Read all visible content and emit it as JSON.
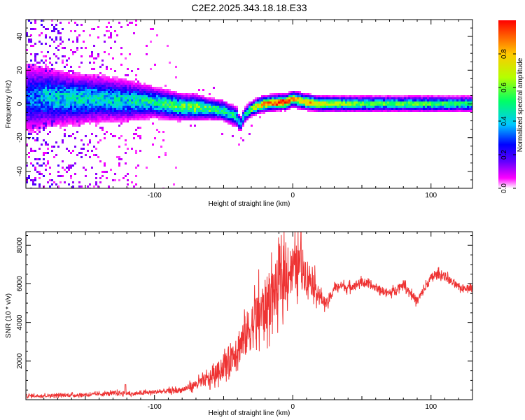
{
  "figure_title": "C2E2.2025.343.18.18.E33",
  "chart_data": [
    {
      "type": "heatmap",
      "title": "C2E2.2025.343.18.18.E33",
      "xlabel": "Height of straight line (km)",
      "ylabel": "Frequency (Hz)",
      "xlim": [
        -193,
        130
      ],
      "ylim": [
        -50,
        50
      ],
      "x_ticks": [
        -100,
        0,
        100
      ],
      "x_tick_labels": [
        "-100",
        "0",
        "100"
      ],
      "y_ticks": [
        -40,
        -20,
        0,
        20,
        40
      ],
      "y_tick_labels": [
        "-40",
        "-20",
        "0",
        "20",
        "40"
      ],
      "colorbar": {
        "label": "Normalized spectral amplitude",
        "range": [
          0,
          1
        ],
        "ticks": [
          0,
          0.2,
          0.4,
          0.6,
          0.8
        ],
        "tick_labels": [
          "0.0",
          "0.2",
          "0.4",
          "0.6",
          "0.8"
        ],
        "colormap": [
          "#ffffff",
          "#ff00ff",
          "#6000ff",
          "#0000ff",
          "#00c8ff",
          "#00ff64",
          "#b4ff00",
          "#ffc800",
          "#ff0000"
        ]
      },
      "ridge": {
        "x": [
          -193,
          -180,
          -160,
          -140,
          -120,
          -100,
          -80,
          -70,
          -60,
          -50,
          -45,
          -40,
          -38,
          -35,
          -30,
          -25,
          -20,
          -10,
          -5,
          0,
          5,
          10,
          20,
          40,
          60,
          80,
          100,
          130
        ],
        "frequency": [
          3,
          4,
          3,
          3,
          2,
          1,
          -2,
          -2,
          -3,
          -4,
          -6,
          -8,
          -13,
          -7,
          -3,
          -1,
          0,
          1,
          1,
          3,
          2,
          1,
          0,
          0,
          0,
          0,
          0,
          0
        ],
        "strength": [
          0.3,
          0.4,
          0.45,
          0.45,
          0.45,
          0.5,
          0.6,
          0.65,
          0.6,
          0.55,
          0.5,
          0.45,
          0.4,
          0.5,
          0.6,
          0.75,
          0.85,
          0.9,
          0.95,
          0.85,
          0.8,
          0.8,
          0.7,
          0.6,
          0.55,
          0.55,
          0.55,
          0.5
        ],
        "width": [
          14,
          12,
          10,
          9,
          8,
          6,
          5,
          5,
          4,
          4,
          4,
          4,
          3,
          3,
          3,
          3,
          3,
          3,
          3,
          3,
          3,
          3,
          3,
          3,
          3,
          3,
          3,
          3
        ]
      }
    },
    {
      "type": "line",
      "xlabel": "Height of straight line (km)",
      "ylabel": "SNR (10 * v/v)",
      "xlim": [
        -193,
        130
      ],
      "ylim": [
        0,
        8700
      ],
      "x_ticks": [
        -100,
        0,
        100
      ],
      "x_tick_labels": [
        "-100",
        "0",
        "100"
      ],
      "y_ticks": [
        2000,
        4000,
        6000,
        8000
      ],
      "y_tick_labels": [
        "2000",
        "4000",
        "6000",
        "8000"
      ],
      "series": [
        {
          "name": "SNR",
          "color": "#ee3333",
          "x": [
            -193,
            -150,
            -125,
            -115,
            -100,
            -80,
            -70,
            -60,
            -50,
            -45,
            -40,
            -35,
            -30,
            -25,
            -20,
            -15,
            -10,
            -5,
            0,
            5,
            10,
            15,
            20,
            25,
            30,
            35,
            40,
            50,
            60,
            70,
            80,
            90,
            100,
            105,
            110,
            120,
            130
          ],
          "envelope": [
            200,
            250,
            350,
            300,
            400,
            500,
            800,
            1100,
            1700,
            2200,
            2700,
            3200,
            3800,
            4300,
            4800,
            5400,
            6000,
            6500,
            6800,
            7000,
            6500,
            6000,
            5300,
            4900,
            5800,
            5900,
            5800,
            6100,
            5800,
            5500,
            6000,
            5100,
            6300,
            6500,
            6400,
            5800,
            5800
          ],
          "amplitude": [
            150,
            150,
            200,
            150,
            200,
            250,
            400,
            700,
            1000,
            1400,
            1700,
            2000,
            2200,
            2500,
            2600,
            2600,
            2500,
            2400,
            2200,
            2000,
            1700,
            1200,
            700,
            400,
            400,
            400,
            400,
            350,
            350,
            350,
            350,
            400,
            400,
            400,
            400,
            300,
            300
          ],
          "peak": {
            "x": 6,
            "value": 8700
          }
        }
      ]
    }
  ]
}
